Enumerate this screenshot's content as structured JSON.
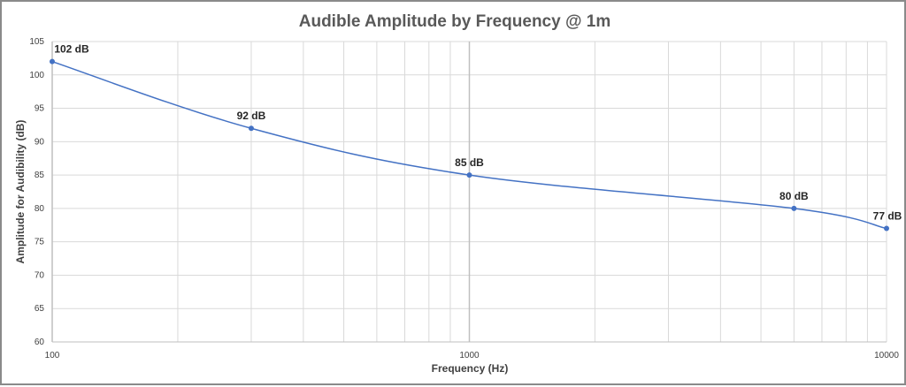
{
  "chart_data": {
    "type": "line",
    "title": "Audible Amplitude by Frequency @ 1m",
    "xlabel": "Frequency (Hz)",
    "ylabel": "Amplitude for Audibility (dB)",
    "x_scale": "log",
    "xlim": [
      100,
      10000
    ],
    "ylim": [
      60,
      105
    ],
    "x_ticks": [
      "100",
      "1000",
      "10000"
    ],
    "y_ticks": [
      "60",
      "65",
      "70",
      "75",
      "80",
      "85",
      "90",
      "95",
      "100",
      "105"
    ],
    "grid": true,
    "series": [
      {
        "x": [
          100,
          300,
          1000,
          6000,
          10000
        ],
        "y": [
          102,
          92,
          85,
          80,
          77
        ],
        "labels": [
          "102 dB",
          "92 dB",
          "85 dB",
          "80 dB",
          "77 dB"
        ],
        "color": "#4472C4"
      }
    ]
  }
}
